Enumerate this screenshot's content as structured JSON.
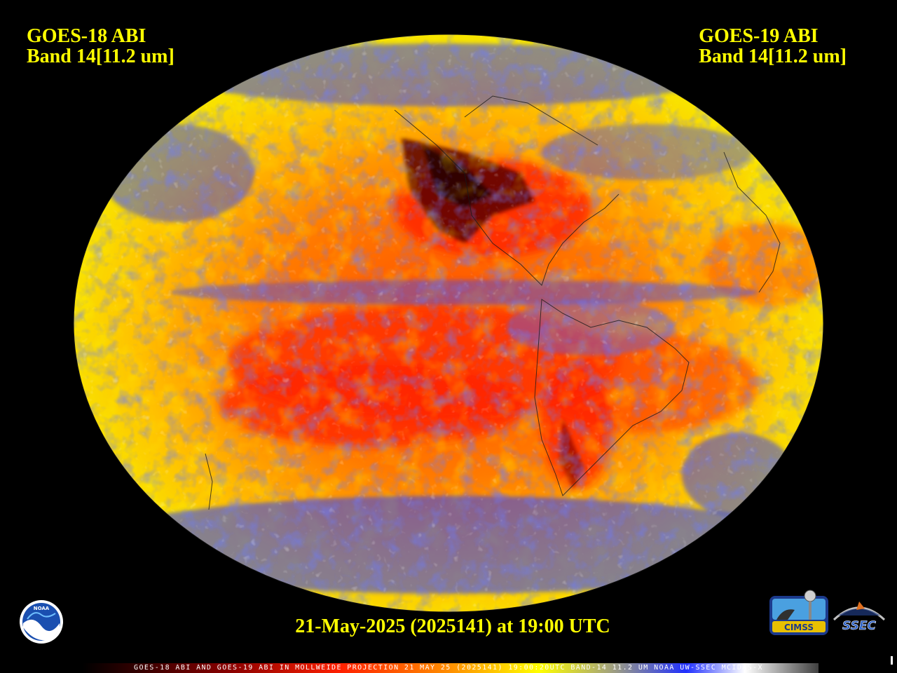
{
  "left_title": {
    "line1": "GOES-18 ABI",
    "line2": "Band 14[11.2 um]"
  },
  "right_title": {
    "line1": "GOES-19 ABI",
    "line2": "Band 14[11.2 um]"
  },
  "timestamp": "21-May-2025 (2025141) at 19:00 UTC",
  "footer": "GOES-18 ABI AND GOES-19 ABI IN MOLLWEIDE PROJECTION 21 MAY 25 (2025141) 19:00:20UTC BAND-14 11.2 UM NOAA UW-SSEC MCIDAS-X",
  "logos": {
    "noaa": "NOAA",
    "cimss": "CIMSS",
    "ssec": "SSEC"
  },
  "colors": {
    "title_text": "#ffff00",
    "background": "#000000",
    "warm_surface": "#ff3000",
    "mid_surface": "#ff9000",
    "cool_cloud": "#ffff00",
    "cold_cloud": "#2030ff",
    "coldest_cloud": "#ffffff"
  }
}
